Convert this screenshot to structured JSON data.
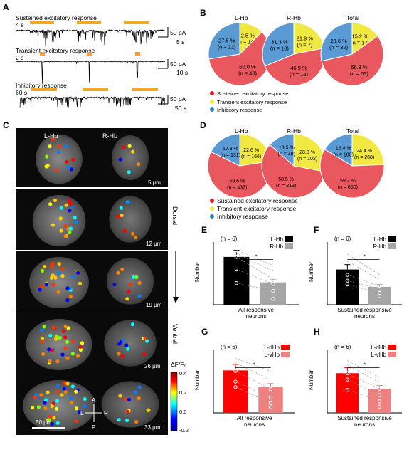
{
  "panel_labels": {
    "a": "A",
    "b": "B",
    "c": "C",
    "d": "D",
    "e": "E",
    "f": "F",
    "g": "G",
    "h": "H"
  },
  "colors": {
    "sustained": "#e8585e",
    "transient": "#f2e842",
    "inhibitory": "#5b9bd5",
    "lhb": "#000000",
    "rhb": "#a6a6a6",
    "ldhb": "#ff0000",
    "lvhb": "#f08080"
  },
  "panel_a": {
    "traces": [
      {
        "title": "Sustained excitatory response",
        "stim_label": "4 s",
        "scale_y": "50 pA",
        "scale_x": "5 s"
      },
      {
        "title": "Transient excitatory response",
        "stim_label": "2 s",
        "scale_y": "50 pA",
        "scale_x": "10 s"
      },
      {
        "title": "Inhibitory response",
        "stim_label": "60 s",
        "scale_y": "50 pA",
        "scale_x": "50 s"
      }
    ]
  },
  "panel_b": {
    "titles": [
      "L-Hb",
      "R-Hb",
      "Total"
    ],
    "pies": [
      {
        "slices": [
          {
            "label": "60.0 %",
            "n": "(n = 48)",
            "value": 60.0
          },
          {
            "label": "12.5 %",
            "n": "(n = 10)",
            "value": 12.5
          },
          {
            "label": "27.5 %",
            "n": "(n = 22)",
            "value": 27.5
          }
        ]
      },
      {
        "slices": [
          {
            "label": "46.9 %",
            "n": "(n = 15)",
            "value": 46.9
          },
          {
            "label": "21.9 %",
            "n": "(n = 7)",
            "value": 21.9
          },
          {
            "label": "31.3 %",
            "n": "(n = 10)",
            "value": 31.3
          }
        ]
      },
      {
        "slices": [
          {
            "label": "56.3 %",
            "n": "(n = 63)",
            "value": 56.3
          },
          {
            "label": "15.2 %",
            "n": "(n = 17)",
            "value": 15.2
          },
          {
            "label": "28.6 %",
            "n": "(n = 32)",
            "value": 28.6
          }
        ]
      }
    ],
    "legend": [
      "Sustained excitatory response",
      "Transient excitatory response",
      "Inhibitory response"
    ]
  },
  "panel_c": {
    "labels": {
      "lhb": "L-Hb",
      "rhb": "R-Hb",
      "dorsal": "Dorsal",
      "ventral": "Ventral",
      "scalebar": "50 μm",
      "colorbar_title": "ΔF/F₀",
      "axis_a": "A",
      "axis_p": "P",
      "axis_l": "L",
      "axis_r": "R"
    },
    "depths": [
      "5 μm",
      "12 μm",
      "19 μm",
      "26 μm",
      "33 μm"
    ],
    "colorbar_ticks": [
      "0.4",
      "0.2",
      "0.0",
      "-0.2"
    ]
  },
  "panel_d": {
    "titles": [
      "L-Hb",
      "R-Hb",
      "Total"
    ],
    "pies": [
      {
        "slices": [
          {
            "label": "59.6 %",
            "n": "(n = 437)",
            "value": 59.6
          },
          {
            "label": "22.6 %",
            "n": "(n = 166)",
            "value": 22.6
          },
          {
            "label": "17.8 %",
            "n": "(n = 131)",
            "value": 17.8
          }
        ]
      },
      {
        "slices": [
          {
            "label": "58.5 %",
            "n": "(n = 213)",
            "value": 58.5
          },
          {
            "label": "28.0 %",
            "n": "(n = 102)",
            "value": 28.0
          },
          {
            "label": "13.5 %",
            "n": "(n = 49)",
            "value": 13.5
          }
        ]
      },
      {
        "slices": [
          {
            "label": "59.2 %",
            "n": "(n = 650)",
            "value": 59.2
          },
          {
            "label": "24.4 %",
            "n": "(n = 268)",
            "value": 24.4
          },
          {
            "label": "16.4 %",
            "n": "(n = 180)",
            "value": 16.4
          }
        ]
      }
    ],
    "legend": [
      "Sustained excitatory response",
      "Transient excitatory response",
      "Inhibitory response"
    ]
  },
  "chart_data": [
    {
      "type": "bar",
      "panel": "E",
      "categories": [
        "L-Hb",
        "R-Hb"
      ],
      "values": [
        122,
        57
      ],
      "ylabel": "Number",
      "xlabel": "All responsive neurons",
      "n_label": "(n = 6)",
      "significance": "*",
      "points": [
        [
          140,
          131,
          122,
          90,
          55
        ],
        [
          100,
          86,
          65,
          53,
          35,
          15
        ]
      ],
      "ylim": [
        0,
        160
      ]
    },
    {
      "type": "bar",
      "panel": "F",
      "categories": [
        "L-Hb",
        "R-Hb"
      ],
      "values": [
        73,
        37
      ],
      "ylabel": "Number",
      "xlabel": "Sustained responsive neurons",
      "n_label": "(n = 6)",
      "significance": "*",
      "points": [
        [
          105,
          90,
          62,
          50,
          42
        ],
        [
          62,
          52,
          38,
          33,
          24,
          18
        ]
      ],
      "ylim": [
        0,
        130
      ]
    },
    {
      "type": "bar",
      "panel": "G",
      "categories": [
        "L-dHb",
        "L-vHb"
      ],
      "values": [
        61,
        37
      ],
      "ylabel": "Number",
      "xlabel": "All responsive neurons",
      "n_label": "(n = 6)",
      "significance": "*",
      "points": [
        [
          78,
          72,
          60,
          45,
          37
        ],
        [
          60,
          47,
          34,
          22,
          14,
          8
        ]
      ],
      "ylim": [
        0,
        90
      ]
    },
    {
      "type": "bar",
      "panel": "H",
      "categories": [
        "L-dHb",
        "L-vHb"
      ],
      "values": [
        38,
        23
      ],
      "ylabel": "Number",
      "xlabel": "Sustained responsive neurons",
      "n_label": "(n = 6)",
      "significance": "*",
      "points": [
        [
          50,
          46,
          38,
          32,
          22
        ],
        [
          34,
          29,
          23,
          17,
          11,
          6
        ]
      ],
      "ylim": [
        0,
        60
      ]
    }
  ]
}
